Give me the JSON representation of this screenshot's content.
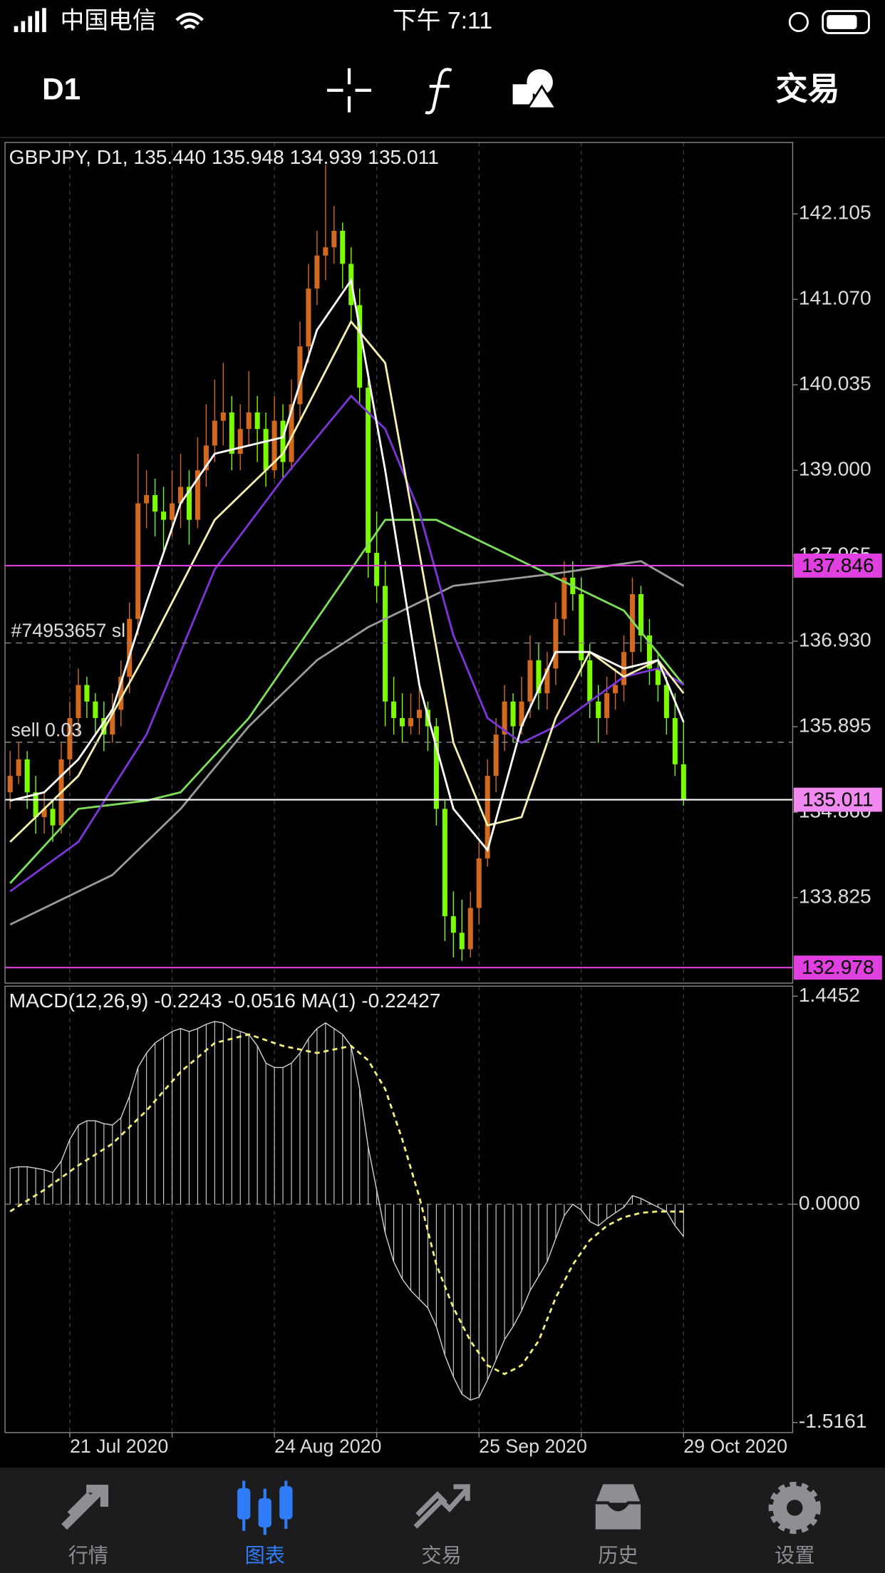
{
  "ui": {
    "status": {
      "carrier": "中国电信",
      "time": "下午 7:11"
    },
    "toolbar": {
      "timeframe": "D1",
      "trade": "交易"
    },
    "tabs": [
      "行情",
      "图表",
      "交易",
      "历史",
      "设置"
    ]
  },
  "chart_data": [
    {
      "type": "candlestick",
      "title": "GBPJPY, D1, 135.440 135.948 134.939 135.011",
      "xlim": [
        -0.6,
        91.8
      ],
      "ylim": [
        132.79,
        142.97
      ],
      "yticks": [
        142.105,
        {
          "value": 141.07,
          "label": "141.070"
        },
        140.035,
        {
          "value": 139,
          "label": "139.000"
        },
        137.965,
        {
          "value": 136.93,
          "label": "136.930"
        },
        135.895,
        {
          "value": 134.86,
          "label": "134.860"
        },
        133.825
      ],
      "up_color": "#d2691e",
      "down_color": "#7cfc00",
      "ohlc": [
        [
          135.1,
          135.6,
          134.9,
          135.3
        ],
        [
          135.3,
          135.7,
          135.2,
          135.5
        ],
        [
          135.5,
          135.6,
          134.9,
          135.1
        ],
        [
          135.1,
          135.3,
          134.6,
          134.8
        ],
        [
          134.8,
          135.1,
          134.6,
          134.9
        ],
        [
          134.9,
          135.0,
          134.5,
          134.7
        ],
        [
          134.7,
          135.7,
          134.6,
          135.5
        ],
        [
          135.5,
          136.2,
          135.3,
          136.0
        ],
        [
          136.0,
          136.6,
          135.8,
          136.4
        ],
        [
          136.4,
          136.5,
          136.0,
          136.2
        ],
        [
          136.2,
          136.3,
          135.8,
          136.0
        ],
        [
          136.0,
          136.2,
          135.6,
          135.8
        ],
        [
          135.8,
          136.3,
          135.7,
          136.1
        ],
        [
          136.1,
          136.7,
          135.9,
          136.5
        ],
        [
          136.5,
          137.4,
          136.3,
          137.2
        ],
        [
          137.2,
          139.2,
          137.0,
          138.6
        ],
        [
          138.6,
          139.0,
          138.3,
          138.7
        ],
        [
          138.7,
          138.9,
          138.2,
          138.5
        ],
        [
          138.5,
          138.8,
          138.0,
          138.4
        ],
        [
          138.4,
          139.0,
          138.2,
          138.6
        ],
        [
          138.6,
          139.2,
          138.3,
          138.8
        ],
        [
          138.8,
          139.0,
          138.1,
          138.4
        ],
        [
          138.4,
          139.4,
          138.3,
          139.0
        ],
        [
          139.0,
          139.8,
          138.8,
          139.3
        ],
        [
          139.3,
          140.1,
          139.1,
          139.6
        ],
        [
          139.6,
          140.3,
          139.3,
          139.7
        ],
        [
          139.7,
          139.9,
          139.0,
          139.2
        ],
        [
          139.2,
          139.8,
          139.0,
          139.5
        ],
        [
          139.5,
          140.2,
          139.3,
          139.7
        ],
        [
          139.7,
          139.9,
          139.1,
          139.5
        ],
        [
          139.5,
          139.7,
          138.8,
          139.0
        ],
        [
          139.0,
          139.9,
          138.9,
          139.6
        ],
        [
          139.6,
          139.8,
          138.9,
          139.1
        ],
        [
          139.1,
          140.1,
          139.0,
          139.8
        ],
        [
          139.8,
          140.8,
          139.6,
          140.5
        ],
        [
          140.5,
          141.5,
          140.3,
          141.2
        ],
        [
          141.2,
          141.9,
          141.0,
          141.6
        ],
        [
          141.6,
          142.7,
          141.3,
          141.7
        ],
        [
          141.7,
          142.2,
          141.5,
          141.9
        ],
        [
          141.9,
          142.0,
          141.2,
          141.5
        ],
        [
          141.5,
          141.7,
          140.8,
          141.0
        ],
        [
          141.0,
          141.2,
          139.8,
          140.0
        ],
        [
          140.0,
          140.2,
          137.7,
          138.0
        ],
        [
          138.0,
          138.5,
          137.4,
          137.6
        ],
        [
          137.6,
          137.9,
          135.9,
          136.2
        ],
        [
          136.2,
          136.5,
          135.8,
          136.0
        ],
        [
          136.0,
          136.3,
          135.7,
          135.9
        ],
        [
          135.9,
          136.3,
          135.8,
          136.0
        ],
        [
          136.0,
          136.4,
          135.8,
          136.1
        ],
        [
          136.1,
          136.2,
          135.6,
          135.9
        ],
        [
          135.9,
          136.0,
          134.7,
          134.9
        ],
        [
          134.9,
          135.0,
          133.3,
          133.6
        ],
        [
          133.6,
          133.9,
          133.1,
          133.4
        ],
        [
          133.4,
          133.8,
          133.06,
          133.2
        ],
        [
          133.2,
          133.9,
          133.1,
          133.7
        ],
        [
          133.7,
          134.5,
          133.5,
          134.3
        ],
        [
          134.3,
          135.5,
          134.2,
          135.3
        ],
        [
          135.3,
          136.0,
          135.1,
          135.8
        ],
        [
          135.8,
          136.4,
          135.6,
          136.2
        ],
        [
          136.2,
          136.3,
          135.7,
          135.9
        ],
        [
          135.9,
          136.5,
          135.8,
          136.2
        ],
        [
          136.2,
          137.0,
          136.0,
          136.7
        ],
        [
          136.7,
          136.9,
          136.1,
          136.3
        ],
        [
          136.3,
          136.8,
          136.1,
          136.6
        ],
        [
          136.6,
          137.4,
          136.4,
          137.2
        ],
        [
          137.2,
          137.9,
          137.0,
          137.7
        ],
        [
          137.7,
          137.9,
          137.3,
          137.5
        ],
        [
          137.5,
          137.7,
          136.5,
          136.7
        ],
        [
          136.7,
          136.9,
          136.0,
          136.2
        ],
        [
          136.2,
          136.4,
          135.7,
          136.0
        ],
        [
          136.0,
          136.5,
          135.8,
          136.3
        ],
        [
          136.3,
          136.6,
          136.1,
          136.4
        ],
        [
          136.4,
          137.0,
          136.2,
          136.8
        ],
        [
          136.8,
          137.7,
          136.6,
          137.5
        ],
        [
          137.5,
          137.6,
          136.8,
          137.0
        ],
        [
          137.0,
          137.2,
          136.4,
          136.6
        ],
        [
          136.6,
          136.8,
          136.2,
          136.4
        ],
        [
          136.4,
          136.5,
          135.8,
          136.0
        ],
        [
          136.0,
          136.3,
          135.3,
          135.44
        ],
        [
          135.44,
          135.948,
          134.939,
          135.011
        ]
      ],
      "series": [
        {
          "color": "#9a9a9a",
          "x": [
            0,
            12,
            20,
            28,
            36,
            42,
            52,
            64,
            74,
            79
          ],
          "values": [
            133.5,
            134.1,
            134.9,
            135.9,
            136.7,
            137.1,
            137.6,
            137.75,
            137.9,
            137.6
          ]
        },
        {
          "color": "#7ee05a",
          "x": [
            0,
            8,
            16,
            20,
            28,
            36,
            44,
            50,
            58,
            64,
            72,
            79
          ],
          "values": [
            134.0,
            134.9,
            135.0,
            135.1,
            136.0,
            137.2,
            138.4,
            138.4,
            138.0,
            137.7,
            137.3,
            136.4
          ]
        },
        {
          "color": "#7b35d8",
          "x": [
            0,
            8,
            16,
            24,
            32,
            40,
            44,
            48,
            52,
            56,
            60,
            64,
            68,
            72,
            76,
            79
          ],
          "values": [
            133.9,
            134.5,
            135.8,
            137.8,
            138.9,
            139.9,
            139.5,
            138.5,
            137.0,
            136.0,
            135.7,
            135.9,
            136.2,
            136.5,
            136.6,
            136.4
          ]
        },
        {
          "color": "#f5f0b0",
          "x": [
            0,
            8,
            16,
            24,
            32,
            40,
            44,
            48,
            52,
            56,
            60,
            64,
            68,
            72,
            76,
            79
          ],
          "values": [
            134.5,
            135.3,
            136.8,
            138.4,
            139.2,
            140.8,
            140.3,
            138.0,
            135.7,
            134.7,
            134.8,
            136.0,
            136.8,
            136.5,
            136.7,
            136.3
          ]
        },
        {
          "color": "#ffffff",
          "x": [
            0,
            4,
            8,
            12,
            16,
            20,
            24,
            28,
            32,
            36,
            40,
            44,
            48,
            52,
            56,
            60,
            64,
            68,
            72,
            76,
            79
          ],
          "values": [
            135.0,
            135.1,
            135.5,
            136.1,
            137.4,
            138.6,
            139.2,
            139.3,
            139.4,
            140.7,
            141.3,
            139.0,
            136.4,
            134.9,
            134.4,
            135.9,
            136.8,
            136.8,
            136.6,
            136.7,
            135.95
          ]
        }
      ],
      "levels": [
        {
          "label": "#74953657 sl",
          "value": 136.909
        },
        {
          "label": "sell 0.03",
          "value": 135.707
        }
      ],
      "price_lines": [
        {
          "value": 137.846,
          "color": "#e040e0",
          "box": "#e040e0"
        },
        {
          "value": 135.011,
          "color": "#ffffff",
          "box": "#f08af0"
        },
        {
          "value": 132.978,
          "color": "#e040e0",
          "box": "#e040e0"
        }
      ]
    },
    {
      "type": "macd",
      "title": "MACD(12,26,9) -0.2243 -0.0516 MA(1) -0.22427",
      "xlim": [
        -0.6,
        91.8
      ],
      "ylim": [
        -1.586,
        1.515
      ],
      "yticks": [
        1.4452,
        {
          "value": 0,
          "label": "0.0000"
        },
        -1.5161
      ],
      "xticks": [
        {
          "value": 7,
          "label": "21 Jul 2020"
        },
        {
          "value": 19,
          "label": null
        },
        {
          "value": 31,
          "label": "24 Aug 2020"
        },
        {
          "value": 43,
          "label": null
        },
        {
          "value": 55,
          "label": "25 Sep 2020"
        },
        {
          "value": 67,
          "label": null
        },
        {
          "value": 79,
          "label": "29 Oct 2020"
        }
      ],
      "grid": true,
      "color": "#d0d0d0",
      "values": [
        0.25,
        0.26,
        0.26,
        0.25,
        0.24,
        0.22,
        0.3,
        0.45,
        0.55,
        0.58,
        0.58,
        0.56,
        0.55,
        0.6,
        0.75,
        0.95,
        1.05,
        1.12,
        1.16,
        1.2,
        1.22,
        1.2,
        1.22,
        1.25,
        1.27,
        1.26,
        1.22,
        1.2,
        1.18,
        1.1,
        0.98,
        0.95,
        0.95,
        0.98,
        1.05,
        1.15,
        1.22,
        1.26,
        1.22,
        1.18,
        1.1,
        0.8,
        0.4,
        0.1,
        -0.2,
        -0.4,
        -0.52,
        -0.6,
        -0.66,
        -0.72,
        -0.85,
        -1.05,
        -1.2,
        -1.32,
        -1.36,
        -1.34,
        -1.22,
        -1.08,
        -0.94,
        -0.85,
        -0.74,
        -0.6,
        -0.5,
        -0.4,
        -0.24,
        -0.08,
        0.0,
        -0.04,
        -0.12,
        -0.15,
        -0.1,
        -0.06,
        -0.02,
        0.06,
        0.04,
        0.01,
        -0.02,
        -0.05,
        -0.15,
        -0.2243
      ],
      "signal": {
        "color": "#f5f07a",
        "x": [
          0,
          4,
          8,
          12,
          16,
          20,
          24,
          28,
          32,
          36,
          40,
          42,
          44,
          46,
          48,
          50,
          52,
          54,
          56,
          58,
          60,
          62,
          64,
          66,
          68,
          70,
          72,
          74,
          76,
          79
        ],
        "values": [
          -0.05,
          0.1,
          0.27,
          0.42,
          0.65,
          0.92,
          1.12,
          1.18,
          1.1,
          1.05,
          1.1,
          1.0,
          0.8,
          0.45,
          0.05,
          -0.42,
          -0.72,
          -0.95,
          -1.12,
          -1.18,
          -1.12,
          -0.95,
          -0.65,
          -0.42,
          -0.25,
          -0.15,
          -0.09,
          -0.06,
          -0.05,
          -0.0516
        ]
      }
    }
  ]
}
